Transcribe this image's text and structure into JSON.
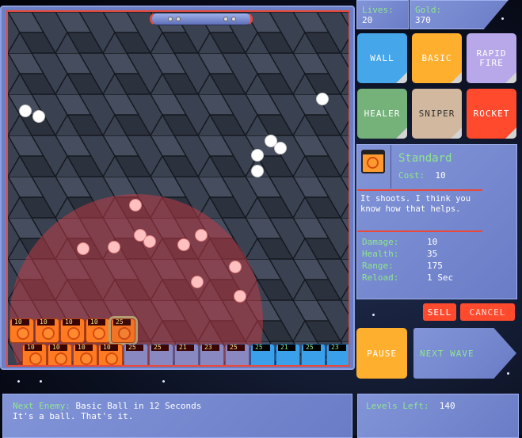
{
  "stats": {
    "lives_label": "Lives:",
    "lives": "20",
    "gold_label": "Gold:",
    "gold": "370"
  },
  "tower_buttons": [
    {
      "label": "WALL",
      "color": "#45a6ea"
    },
    {
      "label": "BASIC",
      "color": "#ffaf2e"
    },
    {
      "label": "RAPID FIRE",
      "color": "#b8a8ea"
    },
    {
      "label": "HEALER",
      "color": "#74b27a"
    },
    {
      "label": "SNIPER",
      "color": "#d2b89e"
    },
    {
      "label": "ROCKET",
      "color": "#ff4a2e"
    }
  ],
  "selected": {
    "name": "Standard",
    "cost_label": "Cost:",
    "cost": "10",
    "description": "It shoots.  I think you know how that helps.",
    "stats": [
      {
        "label": "Damage:",
        "value": "10"
      },
      {
        "label": "Health:",
        "value": "35"
      },
      {
        "label": "Range:",
        "value": "175"
      },
      {
        "label": "Reload:",
        "value": "1 Sec"
      }
    ]
  },
  "actions": {
    "sell": "SELL",
    "cancel": "CANCEL",
    "pause": "PAUSE",
    "next_wave": "NEXT WAVE"
  },
  "towers_row1": [
    {
      "type": "orange",
      "num": "10"
    },
    {
      "type": "orange",
      "num": "10"
    },
    {
      "type": "orange",
      "num": "10"
    },
    {
      "type": "orange",
      "num": "10"
    },
    {
      "type": "ghost",
      "num": "25"
    }
  ],
  "towers_row2": [
    {
      "type": "orange",
      "num": "10"
    },
    {
      "type": "orange",
      "num": "10"
    },
    {
      "type": "orange",
      "num": "10"
    },
    {
      "type": "orange",
      "num": "10"
    },
    {
      "type": "purple",
      "num": "25"
    },
    {
      "type": "purple",
      "num": "25"
    },
    {
      "type": "purple",
      "num": "21"
    },
    {
      "type": "purple",
      "num": "23"
    },
    {
      "type": "purple",
      "num": "25"
    },
    {
      "type": "blue",
      "num": "25"
    },
    {
      "type": "blue",
      "num": "21"
    },
    {
      "type": "blue",
      "num": "25"
    },
    {
      "type": "blue",
      "num": "23"
    }
  ],
  "footer": {
    "next_enemy_label": "Next Enemy:",
    "next_enemy": "Basic Ball in 12 Seconds",
    "enemy_desc": "It's a ball.  That's it.",
    "levels_label": "Levels Left:",
    "levels": "140"
  }
}
